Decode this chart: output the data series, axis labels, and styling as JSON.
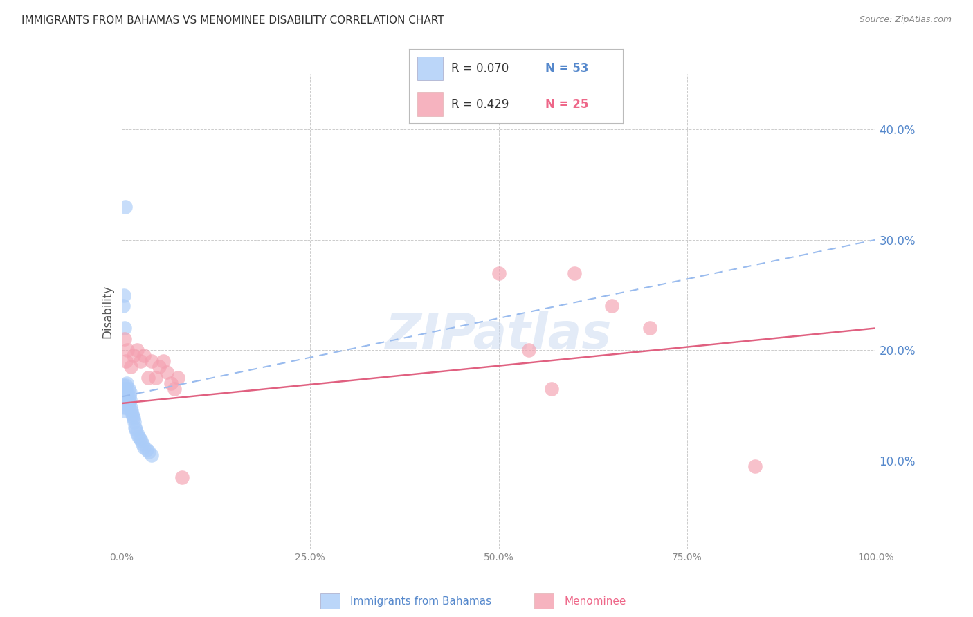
{
  "title": "IMMIGRANTS FROM BAHAMAS VS MENOMINEE DISABILITY CORRELATION CHART",
  "source": "Source: ZipAtlas.com",
  "ylabel": "Disability",
  "watermark": "ZIPatlas",
  "legend_blue_label": "Immigrants from Bahamas",
  "legend_pink_label": "Menominee",
  "xlim": [
    0.0,
    1.0
  ],
  "ylim": [
    0.02,
    0.45
  ],
  "yticks": [
    0.1,
    0.2,
    0.3,
    0.4
  ],
  "xticks": [
    0.0,
    0.25,
    0.5,
    0.75,
    1.0
  ],
  "blue_scatter_x": [
    0.001,
    0.001,
    0.001,
    0.001,
    0.001,
    0.002,
    0.002,
    0.002,
    0.002,
    0.003,
    0.003,
    0.003,
    0.003,
    0.004,
    0.004,
    0.004,
    0.005,
    0.005,
    0.005,
    0.006,
    0.006,
    0.007,
    0.007,
    0.007,
    0.008,
    0.008,
    0.009,
    0.009,
    0.01,
    0.01,
    0.011,
    0.011,
    0.012,
    0.013,
    0.014,
    0.015,
    0.016,
    0.017,
    0.018,
    0.019,
    0.02,
    0.022,
    0.024,
    0.026,
    0.028,
    0.03,
    0.033,
    0.036,
    0.04,
    0.002,
    0.003,
    0.004,
    0.005
  ],
  "blue_scatter_y": [
    0.16,
    0.162,
    0.155,
    0.158,
    0.165,
    0.158,
    0.162,
    0.155,
    0.168,
    0.16,
    0.155,
    0.148,
    0.145,
    0.163,
    0.158,
    0.152,
    0.165,
    0.16,
    0.155,
    0.168,
    0.152,
    0.17,
    0.155,
    0.148,
    0.162,
    0.155,
    0.165,
    0.15,
    0.158,
    0.153,
    0.162,
    0.155,
    0.148,
    0.145,
    0.142,
    0.14,
    0.138,
    0.135,
    0.13,
    0.128,
    0.125,
    0.122,
    0.12,
    0.118,
    0.115,
    0.112,
    0.11,
    0.108,
    0.105,
    0.24,
    0.25,
    0.22,
    0.33
  ],
  "pink_scatter_x": [
    0.004,
    0.006,
    0.008,
    0.012,
    0.016,
    0.02,
    0.025,
    0.03,
    0.035,
    0.04,
    0.045,
    0.05,
    0.055,
    0.06,
    0.065,
    0.07,
    0.075,
    0.08,
    0.5,
    0.54,
    0.57,
    0.6,
    0.65,
    0.7,
    0.84
  ],
  "pink_scatter_y": [
    0.21,
    0.19,
    0.2,
    0.185,
    0.195,
    0.2,
    0.19,
    0.195,
    0.175,
    0.19,
    0.175,
    0.185,
    0.19,
    0.18,
    0.17,
    0.165,
    0.175,
    0.085,
    0.27,
    0.2,
    0.165,
    0.27,
    0.24,
    0.22,
    0.095
  ],
  "blue_line_x": [
    0.0,
    1.0
  ],
  "blue_line_y": [
    0.158,
    0.3
  ],
  "pink_line_x": [
    0.0,
    1.0
  ],
  "pink_line_y": [
    0.152,
    0.22
  ],
  "blue_color": "#aaccf8",
  "pink_color": "#f4a0b0",
  "blue_trend_color": "#99bbee",
  "pink_trend_color": "#e06080",
  "blue_legend_color": "#5588cc",
  "pink_legend_color": "#ee6688",
  "title_fontsize": 11,
  "right_axis_color": "#5588cc",
  "background_color": "#ffffff",
  "grid_color": "#cccccc"
}
